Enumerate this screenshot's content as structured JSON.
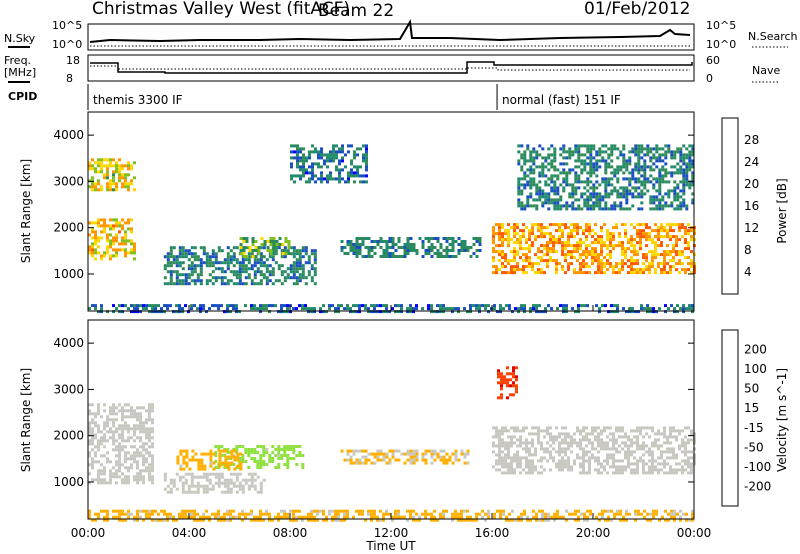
{
  "header": {
    "station": "Christmas Valley West (fitACF)",
    "beam": "Beam 22",
    "date": "01/Feb/2012"
  },
  "summary_panels": {
    "nsky_label": "N.Sky",
    "nsky_top_tick": "10^5",
    "nsky_bottom_tick": "10^0",
    "nsearch_label": "N.Search",
    "nsearch_top_tick": "10^5",
    "nsearch_bottom_tick": "10^0",
    "freq_label_line1": "Freq.",
    "freq_label_line2": "[MHz]",
    "freq_ticks": [
      "18",
      "8"
    ],
    "nave_label": "Nave",
    "nave_ticks": [
      "60",
      "0"
    ],
    "cpid_label": "CPID",
    "cpid_segments": [
      {
        "start_hour": 0,
        "end_hour": 16.2,
        "text": "themis 3300 IF"
      },
      {
        "start_hour": 16.2,
        "end_hour": 24,
        "text": "normal (fast) 151 IF"
      }
    ]
  },
  "power_colorbar": {
    "label": "Power [dB]",
    "ticks": [
      "28",
      "24",
      "20",
      "16",
      "12",
      "8",
      "4"
    ],
    "colors": [
      "#ff0000",
      "#ff5a00",
      "#ff9600",
      "#ffd700",
      "#80c020",
      "#2e8b57",
      "#228b6c",
      "#1a4fc0",
      "#0000ff"
    ]
  },
  "velocity_colorbar": {
    "label": "Velocity [m s^-1]",
    "ticks": [
      "200",
      "100",
      "50",
      "15",
      "-15",
      "-50",
      "-100",
      "-200"
    ],
    "colors": [
      "#1530c8",
      "#2e8b57",
      "#40c040",
      "#90e040",
      "#c8c8c0",
      "#ffb000",
      "#ff8000",
      "#ff4000",
      "#e00000"
    ]
  },
  "chart_data": [
    {
      "type": "heatmap",
      "title": "Power",
      "xlabel": "Time UT",
      "ylabel": "Slant Range [km]",
      "xlim_hours": [
        0,
        24
      ],
      "ylim_km": [
        200,
        4500
      ],
      "x_ticks": [
        "00:00",
        "04:00",
        "08:00",
        "12:00",
        "16:00",
        "20:00",
        "00:00"
      ],
      "y_ticks": [
        "1000",
        "2000",
        "3000",
        "4000"
      ],
      "regions": [
        {
          "start_hour": 0.0,
          "end_hour": 1.8,
          "range_min_km": 1300,
          "range_max_km": 2200,
          "level": 20
        },
        {
          "start_hour": 0.0,
          "end_hour": 1.8,
          "range_min_km": 2800,
          "range_max_km": 3500,
          "level": 18
        },
        {
          "start_hour": 3.0,
          "end_hour": 9.0,
          "range_min_km": 800,
          "range_max_km": 1600,
          "level": 8
        },
        {
          "start_hour": 6.0,
          "end_hour": 8.0,
          "range_min_km": 1400,
          "range_max_km": 1800,
          "level": 14
        },
        {
          "start_hour": 10.0,
          "end_hour": 15.5,
          "range_min_km": 1400,
          "range_max_km": 1800,
          "level": 8
        },
        {
          "start_hour": 8.0,
          "end_hour": 11.0,
          "range_min_km": 3000,
          "range_max_km": 3800,
          "level": 6
        },
        {
          "start_hour": 16.0,
          "end_hour": 24.0,
          "range_min_km": 1000,
          "range_max_km": 2100,
          "level": 22
        },
        {
          "start_hour": 17.0,
          "end_hour": 24.0,
          "range_min_km": 2400,
          "range_max_km": 3800,
          "level": 8
        },
        {
          "start_hour": 0.0,
          "end_hour": 24.0,
          "range_min_km": 200,
          "range_max_km": 350,
          "level": 6
        }
      ]
    },
    {
      "type": "heatmap",
      "title": "Velocity",
      "xlabel": "Time UT",
      "ylabel": "Slant Range [km]",
      "xlim_hours": [
        0,
        24
      ],
      "ylim_km": [
        200,
        4500
      ],
      "x_ticks": [
        "00:00",
        "04:00",
        "08:00",
        "12:00",
        "16:00",
        "20:00",
        "00:00"
      ],
      "y_ticks": [
        "1000",
        "2000",
        "3000",
        "4000"
      ],
      "regions": [
        {
          "start_hour": 0.0,
          "end_hour": 2.5,
          "range_min_km": 1000,
          "range_max_km": 2700,
          "value": 0
        },
        {
          "start_hour": 3.0,
          "end_hour": 7.0,
          "range_min_km": 800,
          "range_max_km": 1200,
          "value": 0
        },
        {
          "start_hour": 5.0,
          "end_hour": 8.5,
          "range_min_km": 1300,
          "range_max_km": 1800,
          "value": 60
        },
        {
          "start_hour": 3.5,
          "end_hour": 6.0,
          "range_min_km": 1300,
          "range_max_km": 1700,
          "value": -60
        },
        {
          "start_hour": 10.0,
          "end_hour": 15.0,
          "range_min_km": 1400,
          "range_max_km": 1700,
          "value": -40
        },
        {
          "start_hour": 16.0,
          "end_hour": 24.0,
          "range_min_km": 1200,
          "range_max_km": 2200,
          "value": 0
        },
        {
          "start_hour": 16.2,
          "end_hour": 17.0,
          "range_min_km": 2800,
          "range_max_km": 3500,
          "value": -200
        },
        {
          "start_hour": 0.0,
          "end_hour": 24.0,
          "range_min_km": 200,
          "range_max_km": 400,
          "value": -50
        }
      ]
    }
  ]
}
